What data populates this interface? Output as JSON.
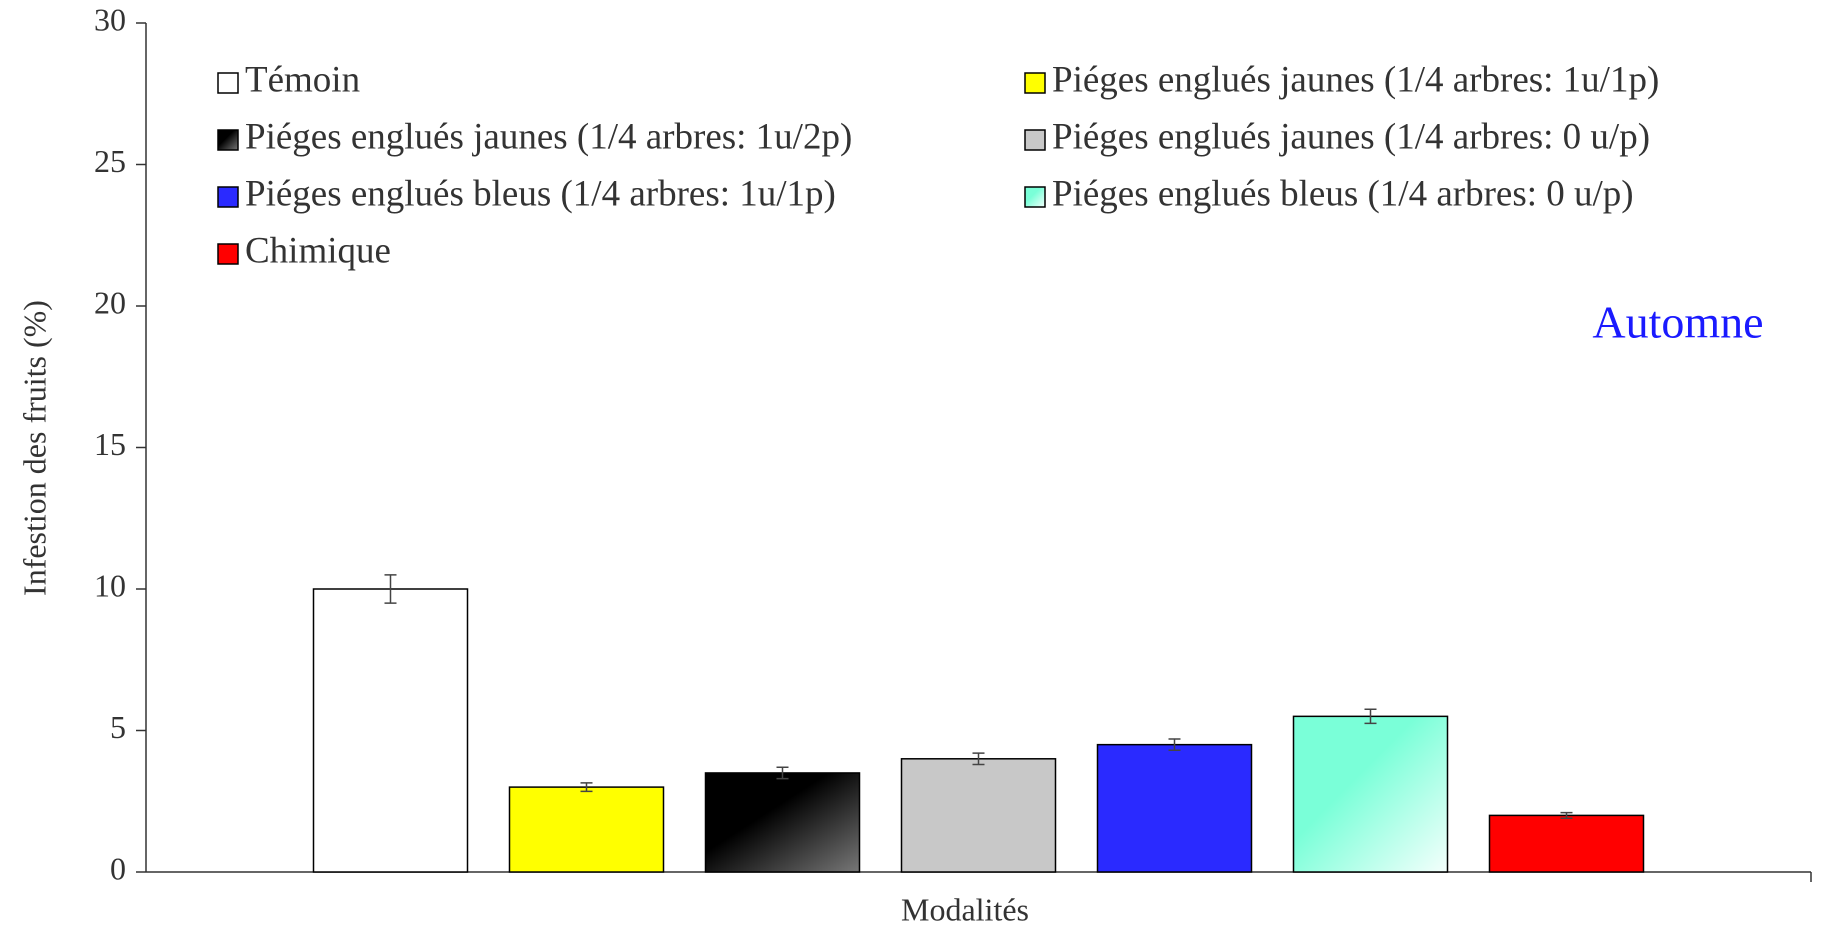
{
  "chart_data": {
    "type": "bar",
    "x_label": "Modalités",
    "y_label": "Infestion des fruits (%)",
    "annotation": "Automne",
    "categories": [
      null
    ],
    "series": [
      {
        "name": "Témoin",
        "color": "#ffffff",
        "values": [
          10
        ],
        "errors": [
          0.5
        ]
      },
      {
        "name": "Piéges englués jaunes (1/4 arbres: 1u/1p)",
        "color": "#ffff00",
        "values": [
          3
        ],
        "errors": [
          0.15
        ]
      },
      {
        "name": "Piéges englués jaunes  (1/4 arbres: 1u/2p)",
        "color": "#111111",
        "values": [
          3.5
        ],
        "errors": [
          0.2
        ]
      },
      {
        "name": "Piéges englués jaunes  (1/4 arbres: 0 u/p)",
        "color": "#c8c8c8",
        "values": [
          4
        ],
        "errors": [
          0.2
        ]
      },
      {
        "name": "Piéges englués bleus (1/4 arbres: 1u/1p)",
        "color": "#2a2aff",
        "values": [
          4.5
        ],
        "errors": [
          0.2
        ]
      },
      {
        "name": "Piéges englués bleus (1/4 arbres: 0 u/p)",
        "color": "#7affd8",
        "values": [
          5.5
        ],
        "errors": [
          0.25
        ]
      },
      {
        "name": "Chimique",
        "color": "#ff0000",
        "values": [
          2
        ],
        "errors": [
          0.1
        ]
      }
    ],
    "ylim": [
      0,
      30
    ],
    "yticks": [
      0,
      5,
      10,
      15,
      20,
      25,
      30
    ],
    "legend": "top",
    "grid": false
  }
}
